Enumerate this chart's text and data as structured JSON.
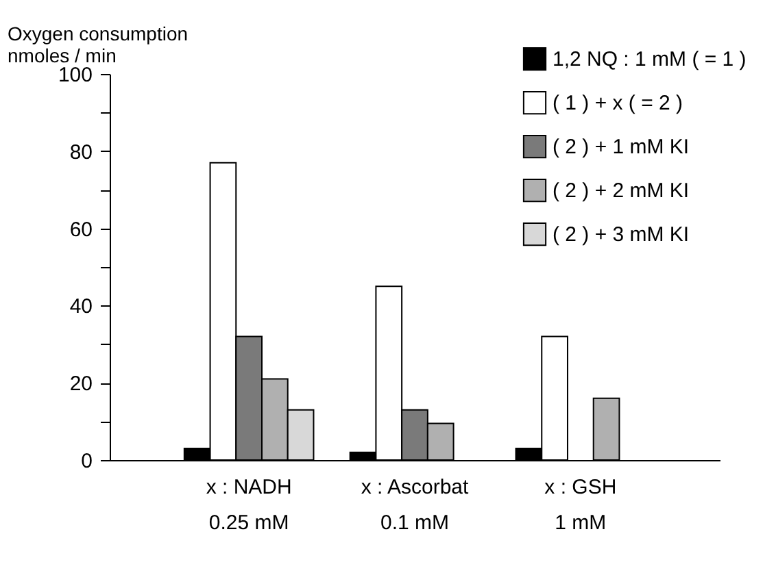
{
  "chart_data": {
    "type": "bar",
    "ylabel": "Oxygen consumption\nnmoles / min",
    "categories": [
      "x :  NADH\n0.25 mM",
      "x : Ascorbat\n0.1 mM",
      "x :   GSH\n1 mM"
    ],
    "series": [
      {
        "name": "1,2 NQ : 1 mM ( = 1 )",
        "color": "#000000",
        "values": [
          3,
          2,
          3
        ]
      },
      {
        "name": "( 1 ) + x ( = 2 )",
        "color": "#ffffff",
        "values": [
          77,
          45,
          32
        ]
      },
      {
        "name": "( 2 ) + 1 mM  KI",
        "color": "#7a7a7a",
        "values": [
          32,
          13,
          null
        ]
      },
      {
        "name": "( 2 ) + 2 mM  KI",
        "color": "#b0b0b0",
        "values": [
          21,
          9.5,
          16
        ]
      },
      {
        "name": "( 2 ) + 3 mM  KI",
        "color": "#d8d8d8",
        "values": [
          13,
          null,
          null
        ]
      }
    ],
    "ylim": [
      0,
      100
    ],
    "yticks": [
      0,
      {
        "value": 10,
        "label": null
      },
      20,
      {
        "value": 30,
        "label": null
      },
      40,
      {
        "value": 50,
        "label": null
      },
      60,
      {
        "value": 70,
        "label": null
      },
      80,
      {
        "value": 90,
        "label": null
      },
      100
    ],
    "grid": false,
    "legend": "top right"
  }
}
